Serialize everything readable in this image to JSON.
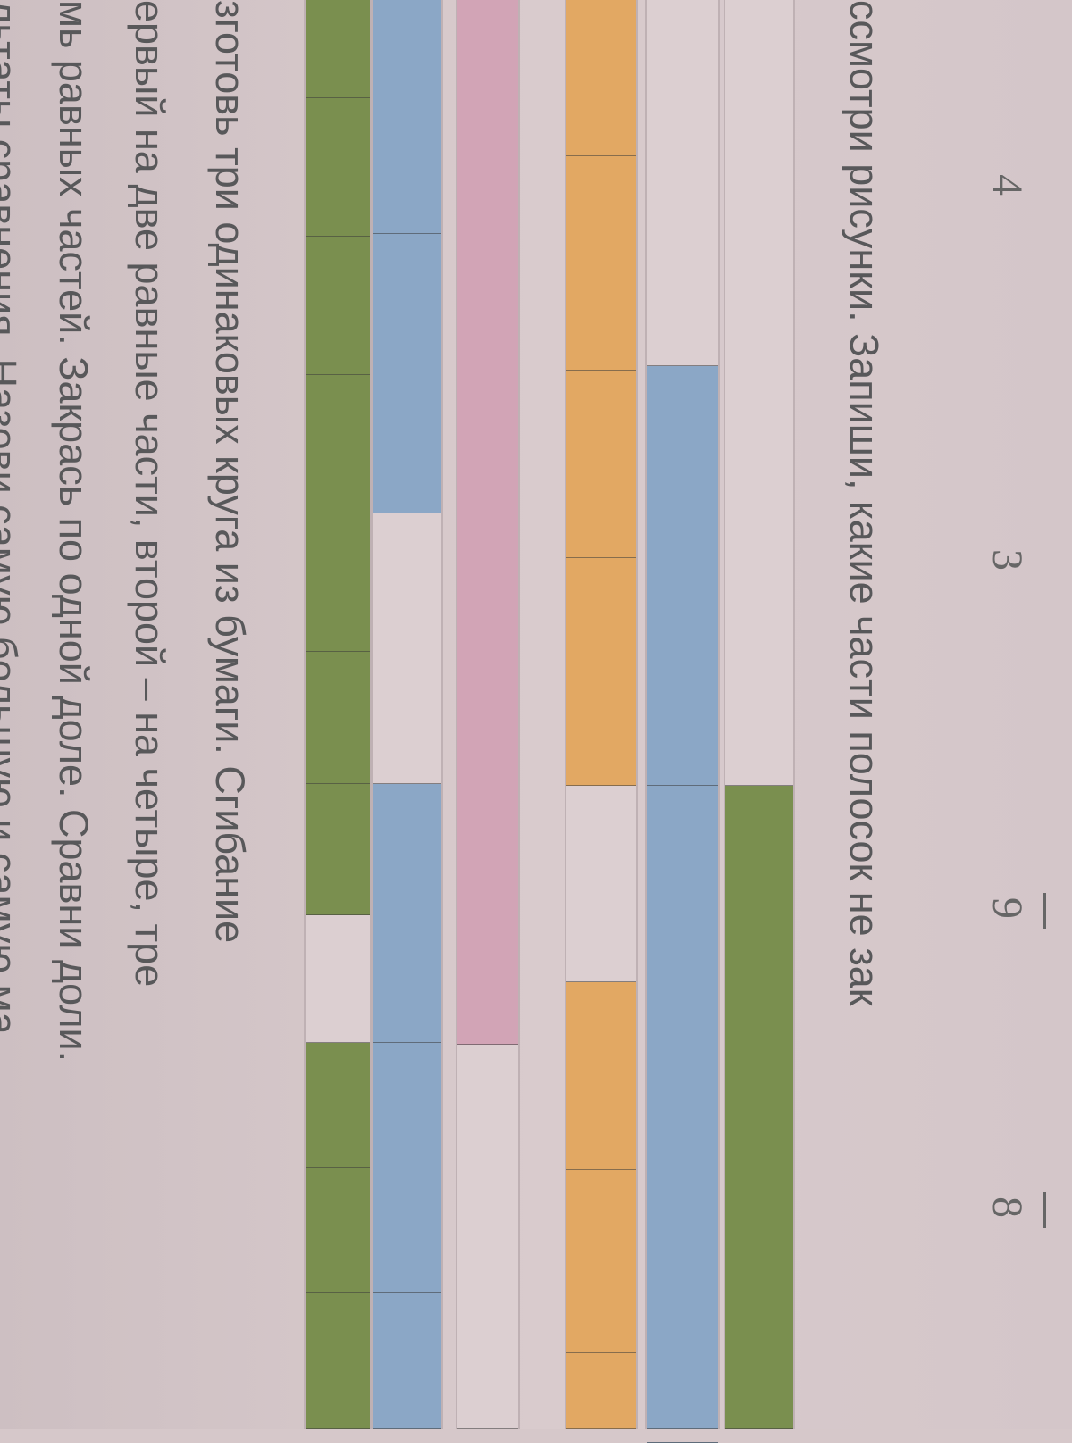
{
  "fractions": [
    "4",
    "3",
    "9",
    "8"
  ],
  "instruction": "ссмотри рисунки. Запиши, какие части полосок не зак",
  "task_lines": [
    "зготовь три одинаковых круга из бумаги. Сгибание",
    "ервый на две равные части, второй – на четыре, тре",
    "мь равных частей. Закрась по одной доле. Сравни доли.",
    "льтаты сравнения. Назови самую большую и самую ма"
  ],
  "colors": {
    "green": "#7a8f4f",
    "blue": "#8ba7c6",
    "orange": "#e2a863",
    "pink": "#d2a4b6",
    "empty": "#dccfd1"
  },
  "strips": [
    {
      "color": "green",
      "filled": [
        false,
        true
      ]
    },
    {
      "color": "blue",
      "filled": [
        false,
        true,
        true,
        true
      ]
    },
    {
      "color": "orange",
      "filled": [
        true,
        true,
        true,
        true,
        false,
        true,
        true,
        true
      ]
    },
    {
      "color": "pink",
      "filled": [
        true,
        true,
        false
      ]
    },
    {
      "color": "blue",
      "filled": [
        true,
        true,
        false,
        true,
        true,
        true
      ]
    },
    {
      "color": "green",
      "filled": [
        true,
        true,
        true,
        true,
        true,
        true,
        true,
        false,
        true,
        true,
        true
      ]
    }
  ]
}
